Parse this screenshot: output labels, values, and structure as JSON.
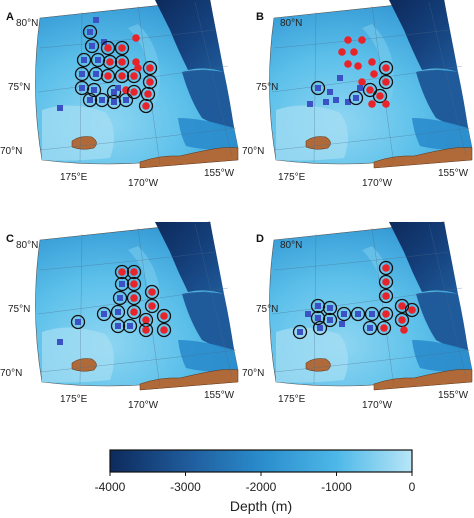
{
  "colors": {
    "deep": "#0d2a5c",
    "mid": "#2a7fc0",
    "shelf": "#4db8e8",
    "shallow": "#b8e6f7",
    "land": "#b06a3a",
    "marker_red": "#e8242a",
    "marker_blue": "#3a52c4",
    "ring": "#111111"
  },
  "panels": [
    {
      "letter": "A",
      "lat_labels": [
        "80°N",
        "75°N",
        "70°N"
      ],
      "lon_labels": [
        "175°E",
        "170°W",
        "155°W"
      ],
      "icons": [
        "blue-square-marker",
        "red-circle-marker",
        "black-ring-highlight"
      ]
    },
    {
      "letter": "B",
      "lat_labels": [
        "80°N",
        "75°N",
        "70°N"
      ],
      "lon_labels": [
        "175°E",
        "170°W",
        "155°W"
      ],
      "icons": [
        "blue-square-marker",
        "red-circle-marker",
        "black-ring-highlight"
      ]
    },
    {
      "letter": "C",
      "lat_labels": [
        "80°N",
        "75°N",
        "70°N"
      ],
      "lon_labels": [
        "175°E",
        "170°W",
        "155°W"
      ],
      "icons": [
        "blue-square-marker",
        "red-circle-marker",
        "black-ring-highlight"
      ]
    },
    {
      "letter": "D",
      "lat_labels": [
        "80°N",
        "75°N",
        "70°N"
      ],
      "lon_labels": [
        "175°E",
        "170°W",
        "155°W"
      ],
      "icons": [
        "blue-square-marker",
        "red-circle-marker",
        "black-ring-highlight"
      ]
    }
  ],
  "colorbar": {
    "ticks": [
      "-4000",
      "-3000",
      "-2000",
      "-1000",
      "0"
    ],
    "label": "Depth (m)",
    "range": [
      -4000,
      0
    ]
  }
}
